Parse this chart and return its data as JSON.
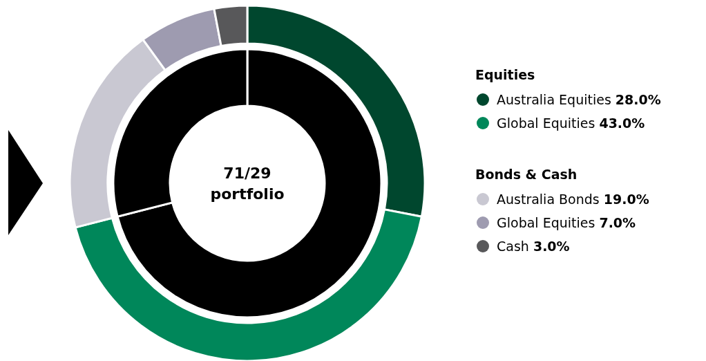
{
  "chart_data": [
    {
      "type": "donut",
      "categories": [
        "Equities",
        "Bonds & Cash"
      ],
      "values": [
        71,
        29
      ],
      "colors": [
        "#000000",
        "#000000"
      ],
      "annotations": [
        "71/29",
        "portfolio"
      ]
    },
    {
      "type": "donut",
      "categories": [
        "Australia Equities",
        "Global Equities",
        "Australia Bonds",
        "Global Equities",
        "Cash"
      ],
      "values": [
        28,
        43,
        19,
        7,
        3
      ],
      "colors": [
        "#00472e",
        "#00875a",
        "#c9c8d2",
        "#9e9bb0",
        "#58585a"
      ],
      "value_labels": [
        "28.0%",
        "43.0%",
        "19.0%",
        "7.0%",
        "3.0%"
      ],
      "legend": "right"
    }
  ]
}
